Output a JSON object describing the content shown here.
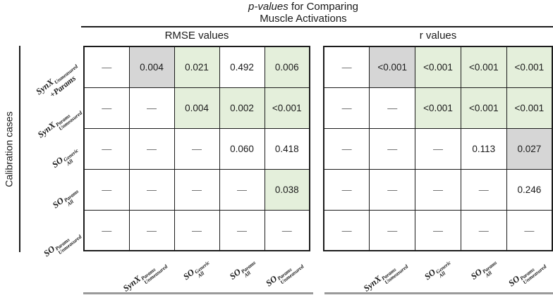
{
  "title": {
    "italic_part": "p-values",
    "line1_rest": " for Comparing",
    "line2": "Muscle Activations"
  },
  "axis": {
    "left_label": "Calibration cases"
  },
  "colors": {
    "green": "#e4efdb",
    "gray": "#d6d6d6",
    "border": "#1c1c1c",
    "dash": "#6a6a6a",
    "bottom_rule": "#9a9a9a"
  },
  "row_labels": [
    {
      "base": "SynX",
      "sup": "",
      "sub": "Unmeasured",
      "extra": "+Params"
    },
    {
      "base": "SynX",
      "sup": "Params",
      "sub": "Unmeasured",
      "extra": ""
    },
    {
      "base": "SO",
      "sup": "Generic",
      "sub": "All",
      "extra": ""
    },
    {
      "base": "SO",
      "sup": "Params",
      "sub": "All",
      "extra": ""
    },
    {
      "base": "SO",
      "sup": "Params",
      "sub": "Unmeasured",
      "extra": ""
    }
  ],
  "col_labels": [
    {
      "base": "SynX",
      "sup": "Params",
      "sub": "Unmeasured"
    },
    {
      "base": "SO",
      "sup": "Generic",
      "sub": "All"
    },
    {
      "base": "SO",
      "sup": "Params",
      "sub": "All"
    },
    {
      "base": "SO",
      "sup": "Params",
      "sub": "Unmeasured"
    }
  ],
  "matrices": [
    {
      "id": "rmse",
      "header": "RMSE values",
      "rows": [
        [
          {
            "text": "—",
            "bg": "white"
          },
          {
            "text": "0.004",
            "bg": "gray"
          },
          {
            "text": "0.021",
            "bg": "green"
          },
          {
            "text": "0.492",
            "bg": "white"
          },
          {
            "text": "0.006",
            "bg": "green"
          }
        ],
        [
          {
            "text": "—",
            "bg": "white"
          },
          {
            "text": "—",
            "bg": "white"
          },
          {
            "text": "0.004",
            "bg": "green"
          },
          {
            "text": "0.002",
            "bg": "green"
          },
          {
            "text": "<0.001",
            "bg": "green"
          }
        ],
        [
          {
            "text": "—",
            "bg": "white"
          },
          {
            "text": "—",
            "bg": "white"
          },
          {
            "text": "—",
            "bg": "white"
          },
          {
            "text": "0.060",
            "bg": "white"
          },
          {
            "text": "0.418",
            "bg": "white"
          }
        ],
        [
          {
            "text": "—",
            "bg": "white"
          },
          {
            "text": "—",
            "bg": "white"
          },
          {
            "text": "—",
            "bg": "white"
          },
          {
            "text": "—",
            "bg": "white"
          },
          {
            "text": "0.038",
            "bg": "green"
          }
        ],
        [
          {
            "text": "—",
            "bg": "white"
          },
          {
            "text": "—",
            "bg": "white"
          },
          {
            "text": "—",
            "bg": "white"
          },
          {
            "text": "—",
            "bg": "white"
          },
          {
            "text": "—",
            "bg": "white"
          }
        ]
      ]
    },
    {
      "id": "r",
      "header": "r values",
      "rows": [
        [
          {
            "text": "—",
            "bg": "white"
          },
          {
            "text": "<0.001",
            "bg": "gray"
          },
          {
            "text": "<0.001",
            "bg": "green"
          },
          {
            "text": "<0.001",
            "bg": "green"
          },
          {
            "text": "<0.001",
            "bg": "green"
          }
        ],
        [
          {
            "text": "—",
            "bg": "white"
          },
          {
            "text": "—",
            "bg": "white"
          },
          {
            "text": "<0.001",
            "bg": "green"
          },
          {
            "text": "<0.001",
            "bg": "green"
          },
          {
            "text": "<0.001",
            "bg": "green"
          }
        ],
        [
          {
            "text": "—",
            "bg": "white"
          },
          {
            "text": "—",
            "bg": "white"
          },
          {
            "text": "—",
            "bg": "white"
          },
          {
            "text": "0.113",
            "bg": "white"
          },
          {
            "text": "0.027",
            "bg": "gray"
          }
        ],
        [
          {
            "text": "—",
            "bg": "white"
          },
          {
            "text": "—",
            "bg": "white"
          },
          {
            "text": "—",
            "bg": "white"
          },
          {
            "text": "—",
            "bg": "white"
          },
          {
            "text": "0.246",
            "bg": "white"
          }
        ],
        [
          {
            "text": "—",
            "bg": "white"
          },
          {
            "text": "—",
            "bg": "white"
          },
          {
            "text": "—",
            "bg": "white"
          },
          {
            "text": "—",
            "bg": "white"
          },
          {
            "text": "—",
            "bg": "white"
          }
        ]
      ]
    }
  ],
  "chart_data": {
    "type": "table",
    "title": "p-values for Comparing Muscle Activations",
    "left_axis_label": "Calibration cases",
    "row_labels": [
      "SynX_Unmeasured +Params",
      "SynX^Params_Unmeasured",
      "SO^Generic_All",
      "SO^Params_All",
      "SO^Params_Unmeasured"
    ],
    "col_labels": [
      "SynX^Params_Unmeasured",
      "SO^Generic_All",
      "SO^Params_All",
      "SO^Params_Unmeasured"
    ],
    "tables": [
      {
        "header": "RMSE values",
        "values": [
          [
            "—",
            "0.004",
            "0.021",
            "0.492",
            "0.006"
          ],
          [
            "—",
            "—",
            "0.004",
            "0.002",
            "<0.001"
          ],
          [
            "—",
            "—",
            "—",
            "0.060",
            "0.418"
          ],
          [
            "—",
            "—",
            "—",
            "—",
            "0.038"
          ],
          [
            "—",
            "—",
            "—",
            "—",
            "—"
          ]
        ],
        "highlight": [
          [
            "none",
            "gray",
            "green",
            "none",
            "green"
          ],
          [
            "none",
            "none",
            "green",
            "green",
            "green"
          ],
          [
            "none",
            "none",
            "none",
            "none",
            "none"
          ],
          [
            "none",
            "none",
            "none",
            "none",
            "green"
          ],
          [
            "none",
            "none",
            "none",
            "none",
            "none"
          ]
        ]
      },
      {
        "header": "r values",
        "values": [
          [
            "—",
            "<0.001",
            "<0.001",
            "<0.001",
            "<0.001"
          ],
          [
            "—",
            "—",
            "<0.001",
            "<0.001",
            "<0.001"
          ],
          [
            "—",
            "—",
            "—",
            "0.113",
            "0.027"
          ],
          [
            "—",
            "—",
            "—",
            "—",
            "0.246"
          ],
          [
            "—",
            "—",
            "—",
            "—",
            "—"
          ]
        ],
        "highlight": [
          [
            "none",
            "gray",
            "green",
            "green",
            "green"
          ],
          [
            "none",
            "none",
            "green",
            "green",
            "green"
          ],
          [
            "none",
            "none",
            "none",
            "none",
            "gray"
          ],
          [
            "none",
            "none",
            "none",
            "none",
            "none"
          ],
          [
            "none",
            "none",
            "none",
            "none",
            "none"
          ]
        ]
      }
    ]
  }
}
